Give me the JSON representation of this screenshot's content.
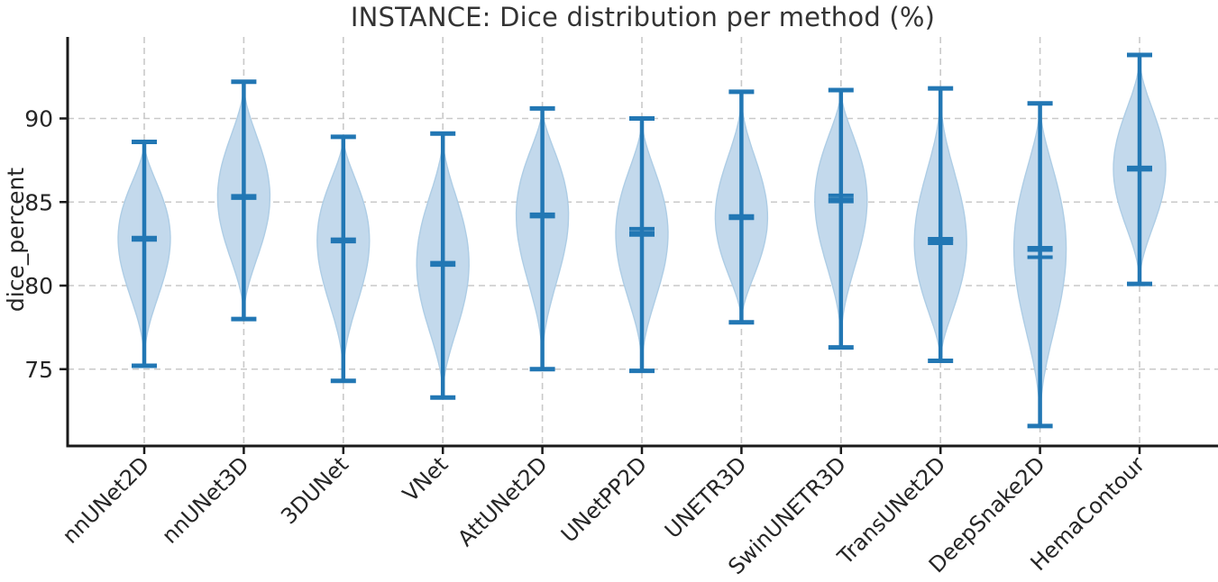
{
  "chart_data": {
    "type": "violin",
    "title": "INSTANCE: Dice distribution per method (%)",
    "ylabel": "dice_percent",
    "xlabel": "",
    "yticks": [
      75,
      80,
      85,
      90
    ],
    "ylim": [
      70.6,
      94.9
    ],
    "grid": true,
    "legend": "none",
    "categories": [
      "nnUNet2D",
      "nnUNet3D",
      "3DUNet",
      "VNet",
      "AttUNet2D",
      "UNetPP2D",
      "UNETR3D",
      "SwinUNETR3D",
      "TransUNet2D",
      "DeepSnake2D",
      "HemaContour"
    ],
    "violins": [
      {
        "label": "nnUNet2D",
        "min": 75.2,
        "max": 88.6,
        "median": 82.8,
        "mean": null
      },
      {
        "label": "nnUNet3D",
        "min": 78.0,
        "max": 92.2,
        "median": 85.3,
        "mean": null
      },
      {
        "label": "3DUNet",
        "min": 74.3,
        "max": 88.9,
        "median": 82.7,
        "mean": null
      },
      {
        "label": "VNet",
        "min": 73.3,
        "max": 89.1,
        "median": 81.3,
        "mean": null
      },
      {
        "label": "AttUNet2D",
        "min": 75.0,
        "max": 90.6,
        "median": 84.2,
        "mean": null
      },
      {
        "label": "UNetPP2D",
        "min": 74.9,
        "max": 90.0,
        "median": 83.1,
        "mean": 83.4
      },
      {
        "label": "UNETR3D",
        "min": 77.8,
        "max": 91.6,
        "median": 84.1,
        "mean": null
      },
      {
        "label": "SwinUNETR3D",
        "min": 76.3,
        "max": 91.7,
        "median": 85.1,
        "mean": 85.4
      },
      {
        "label": "TransUNet2D",
        "min": 75.5,
        "max": 91.8,
        "median": 82.6,
        "mean": 82.8
      },
      {
        "label": "DeepSnake2D",
        "min": 71.6,
        "max": 90.9,
        "median": 82.2,
        "mean": 81.7
      },
      {
        "label": "HemaContour",
        "min": 80.1,
        "max": 93.8,
        "median": 87.0,
        "mean": null
      }
    ],
    "colors": {
      "violin_fill": "#c3d9ec",
      "violin_edge": "#aecde5",
      "line_blue": "#2277b4",
      "grid": "#c9c9c9",
      "axis": "#1a1a1a",
      "tick_text": "#262626",
      "title_text": "#333333"
    }
  }
}
